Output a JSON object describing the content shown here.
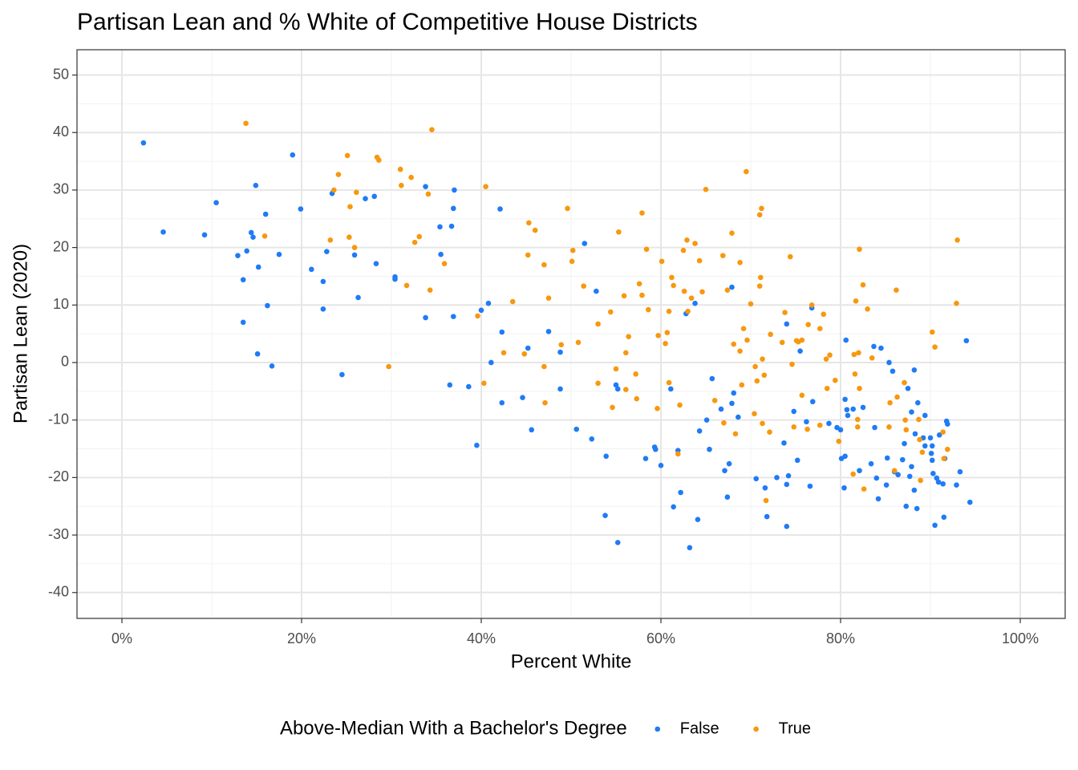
{
  "chart_data": {
    "type": "scatter",
    "title": "Partisan Lean and % White of Competitive House Districts",
    "x_label": "Percent White",
    "y_label": "Partisan Lean (2020)",
    "legend_title": "Above-Median With a Bachelor's Degree",
    "legend_position": "bottom",
    "grid": true,
    "xlim": [
      -5,
      105
    ],
    "ylim": [
      -44.5,
      54.4
    ],
    "xticks": [
      {
        "value": 0,
        "label": "0%"
      },
      {
        "value": 20,
        "label": "20%"
      },
      {
        "value": 40,
        "label": "40%"
      },
      {
        "value": 60,
        "label": "60%"
      },
      {
        "value": 80,
        "label": "80%"
      },
      {
        "value": 100,
        "label": "100%"
      }
    ],
    "yticks": [
      -40,
      -30,
      -20,
      -10,
      0,
      10,
      20,
      30,
      40,
      50
    ],
    "series": [
      {
        "name": "False",
        "color": "#1f7bf6",
        "x": [
          2.4,
          4.6,
          9.2,
          10.5,
          12.9,
          13.5,
          13.5,
          13.9,
          14.4,
          14.6,
          14.9,
          15.2,
          15.1,
          16.0,
          16.2,
          16.7,
          17.5,
          19.0,
          19.9,
          21.1,
          22.4,
          22.4,
          22.8,
          23.4,
          24.5,
          25.9,
          26.3,
          27.1,
          28.1,
          28.3,
          30.4,
          30.4,
          33.8,
          33.8,
          35.4,
          35.5,
          36.5,
          36.7,
          37.0,
          36.9,
          36.9,
          38.6,
          39.5,
          40.0,
          40.8,
          41.1,
          42.1,
          42.3,
          42.3,
          44.6,
          45.2,
          45.6,
          47.5,
          48.8,
          48.8,
          50.6,
          51.5,
          52.3,
          52.8,
          53.8,
          53.9,
          55.0,
          55.2,
          55.2,
          58.3,
          59.3,
          59.4,
          60.0,
          61.1,
          61.4,
          61.9,
          62.2,
          62.8,
          63.2,
          63.8,
          64.1,
          64.3,
          65.1,
          65.4,
          65.7,
          66.7,
          67.1,
          67.4,
          67.6,
          67.9,
          67.9,
          68.1,
          68.6,
          70.6,
          71.6,
          71.8,
          72.9,
          73.7,
          74.0,
          74.0,
          74.0,
          74.2,
          74.8,
          75.2,
          75.5,
          76.2,
          76.6,
          76.8,
          76.9,
          78.7,
          79.6,
          80.0,
          80.1,
          80.4,
          80.5,
          80.5,
          80.6,
          80.7,
          80.8,
          81.4,
          82.1,
          82.5,
          83.4,
          83.7,
          83.8,
          84.0,
          84.2,
          84.5,
          85.1,
          85.2,
          85.4,
          85.8,
          86.0,
          86.4,
          86.9,
          87.1,
          87.3,
          87.5,
          87.7,
          87.9,
          87.9,
          88.2,
          88.2,
          88.5,
          88.3,
          88.6,
          89.2,
          89.4,
          89.4,
          90.0,
          90.1,
          90.2,
          90.2,
          90.3,
          90.5,
          90.7,
          91.0,
          90.9,
          91.4,
          91.5,
          91.6,
          91.8,
          91.9,
          92.9,
          93.3,
          94.0,
          94.4
        ],
        "values": [
          38.2,
          22.7,
          22.2,
          27.8,
          18.6,
          14.4,
          7.0,
          19.4,
          22.6,
          21.8,
          30.8,
          16.6,
          1.5,
          25.8,
          9.9,
          -0.6,
          18.8,
          36.1,
          26.7,
          16.2,
          14.1,
          9.3,
          19.3,
          29.4,
          -2.1,
          18.7,
          11.3,
          28.5,
          28.9,
          17.2,
          14.9,
          14.5,
          30.6,
          7.8,
          23.6,
          18.8,
          -3.9,
          23.7,
          30.0,
          26.8,
          8.0,
          -4.2,
          -14.4,
          9.1,
          10.3,
          0.0,
          26.7,
          5.3,
          -7.0,
          -6.1,
          2.5,
          -11.7,
          5.4,
          1.8,
          -4.6,
          -11.6,
          20.7,
          -13.3,
          12.4,
          -26.6,
          -16.3,
          -3.9,
          -31.3,
          -4.6,
          -16.7,
          -14.7,
          -15.1,
          -17.9,
          -4.6,
          -25.1,
          -15.3,
          -22.6,
          8.5,
          -32.2,
          10.3,
          -27.3,
          -11.9,
          -10.0,
          -15.1,
          -2.8,
          -8.1,
          -18.8,
          -23.4,
          -17.6,
          13.1,
          -7.1,
          -5.3,
          -9.5,
          -20.2,
          -21.8,
          -26.8,
          -20.0,
          -14.0,
          -21.2,
          -28.5,
          6.7,
          -19.7,
          -8.5,
          -17.0,
          2.0,
          -10.3,
          -21.5,
          9.5,
          -6.8,
          -10.6,
          -11.3,
          -11.7,
          -16.7,
          -21.8,
          -16.3,
          -6.4,
          3.9,
          -8.2,
          -9.2,
          -8.1,
          -18.8,
          -7.8,
          -17.6,
          2.8,
          -11.3,
          -20.1,
          -23.7,
          2.5,
          -21.3,
          -16.6,
          0.0,
          -1.5,
          -19.0,
          -19.5,
          -16.9,
          -14.1,
          -25.0,
          -4.5,
          -19.8,
          -8.6,
          -18.1,
          -1.3,
          -22.2,
          -25.4,
          -12.4,
          -7.0,
          -13.1,
          -9.2,
          -14.5,
          -13.1,
          -15.8,
          -14.5,
          -17.0,
          -19.3,
          -28.3,
          -20.1,
          -12.6,
          -20.8,
          -21.1,
          -26.9,
          -16.7,
          -10.2,
          -10.7,
          -21.3,
          -19.0,
          3.8,
          -24.3
        ]
      },
      {
        "name": "True",
        "color": "#f7980f",
        "x": [
          13.8,
          15.9,
          23.2,
          23.6,
          24.1,
          25.1,
          25.3,
          25.4,
          25.9,
          26.1,
          28.4,
          28.6,
          29.7,
          31.0,
          31.1,
          31.7,
          32.2,
          32.6,
          33.1,
          34.1,
          34.3,
          34.5,
          35.9,
          39.6,
          40.3,
          40.5,
          42.5,
          43.5,
          44.8,
          45.2,
          45.3,
          46.0,
          47.0,
          47.0,
          47.1,
          47.5,
          48.9,
          49.6,
          50.1,
          50.2,
          50.8,
          51.4,
          53.0,
          53.0,
          54.4,
          54.6,
          55.0,
          55.3,
          55.9,
          56.1,
          56.1,
          56.4,
          57.2,
          57.3,
          57.6,
          57.9,
          57.9,
          58.4,
          58.6,
          59.6,
          59.7,
          60.1,
          60.5,
          60.7,
          60.9,
          60.9,
          61.2,
          61.4,
          61.9,
          62.1,
          62.5,
          62.6,
          62.9,
          63.0,
          63.4,
          63.8,
          64.3,
          64.6,
          65.0,
          66.0,
          66.9,
          67.0,
          67.4,
          67.9,
          68.1,
          68.3,
          68.8,
          68.8,
          69.0,
          69.2,
          69.5,
          69.6,
          70.0,
          70.4,
          70.5,
          70.7,
          71.0,
          71.0,
          71.1,
          71.2,
          71.3,
          71.3,
          71.5,
          71.7,
          72.1,
          72.2,
          73.5,
          73.8,
          74.4,
          74.6,
          74.8,
          75.1,
          75.3,
          75.7,
          75.7,
          76.3,
          76.4,
          76.8,
          77.7,
          77.7,
          78.1,
          78.4,
          78.5,
          78.8,
          79.4,
          79.8,
          81.4,
          81.5,
          81.6,
          81.7,
          81.9,
          81.9,
          82.0,
          82.1,
          82.1,
          82.5,
          82.6,
          83.0,
          83.5,
          85.4,
          85.5,
          86.0,
          86.2,
          86.3,
          87.1,
          87.2,
          87.3,
          88.7,
          88.8,
          88.9,
          89.1,
          90.2,
          90.5,
          91.4,
          91.5,
          91.9,
          92.9,
          93.0
        ],
        "values": [
          41.6,
          22.0,
          21.3,
          30.0,
          32.7,
          36.0,
          21.8,
          27.1,
          20.0,
          29.6,
          35.7,
          35.2,
          -0.7,
          33.6,
          30.8,
          13.4,
          32.2,
          20.9,
          21.9,
          29.3,
          12.6,
          40.5,
          17.2,
          8.1,
          -3.6,
          30.6,
          1.7,
          10.6,
          1.5,
          18.7,
          24.3,
          23.0,
          -0.7,
          17.0,
          -7.0,
          11.2,
          3.1,
          26.8,
          17.6,
          19.5,
          3.5,
          13.3,
          6.7,
          -3.6,
          8.8,
          -7.8,
          -1.1,
          22.7,
          11.6,
          -4.7,
          1.7,
          4.5,
          -2.0,
          -6.3,
          13.7,
          11.7,
          26.0,
          19.7,
          9.2,
          -8.0,
          4.7,
          17.6,
          3.3,
          5.2,
          8.9,
          -3.5,
          14.8,
          13.4,
          -15.9,
          -7.4,
          19.5,
          12.4,
          21.3,
          8.9,
          11.2,
          20.7,
          17.7,
          12.3,
          30.1,
          -6.6,
          18.6,
          -10.5,
          12.6,
          22.5,
          3.2,
          -12.4,
          2.0,
          17.4,
          -3.9,
          5.9,
          33.2,
          3.9,
          10.2,
          -8.9,
          -0.7,
          -3.2,
          25.7,
          13.3,
          14.8,
          26.8,
          0.6,
          -10.6,
          -2.2,
          -24.0,
          -12.1,
          4.9,
          3.5,
          8.7,
          18.4,
          -0.3,
          -11.2,
          3.8,
          3.6,
          3.9,
          -5.7,
          -11.6,
          6.6,
          10.0,
          5.9,
          -10.9,
          8.4,
          0.6,
          -4.5,
          1.3,
          -3.1,
          -13.7,
          -19.4,
          1.4,
          -2.0,
          10.7,
          -9.9,
          -11.2,
          1.7,
          19.7,
          -4.5,
          13.5,
          -22.0,
          9.3,
          0.8,
          -11.2,
          -7.0,
          -18.8,
          12.6,
          -6.0,
          -3.5,
          -10.0,
          -11.7,
          -9.9,
          -13.4,
          -20.5,
          -15.6,
          5.3,
          2.7,
          -12.1,
          -16.7,
          -15.1,
          10.3,
          21.3
        ]
      }
    ]
  }
}
